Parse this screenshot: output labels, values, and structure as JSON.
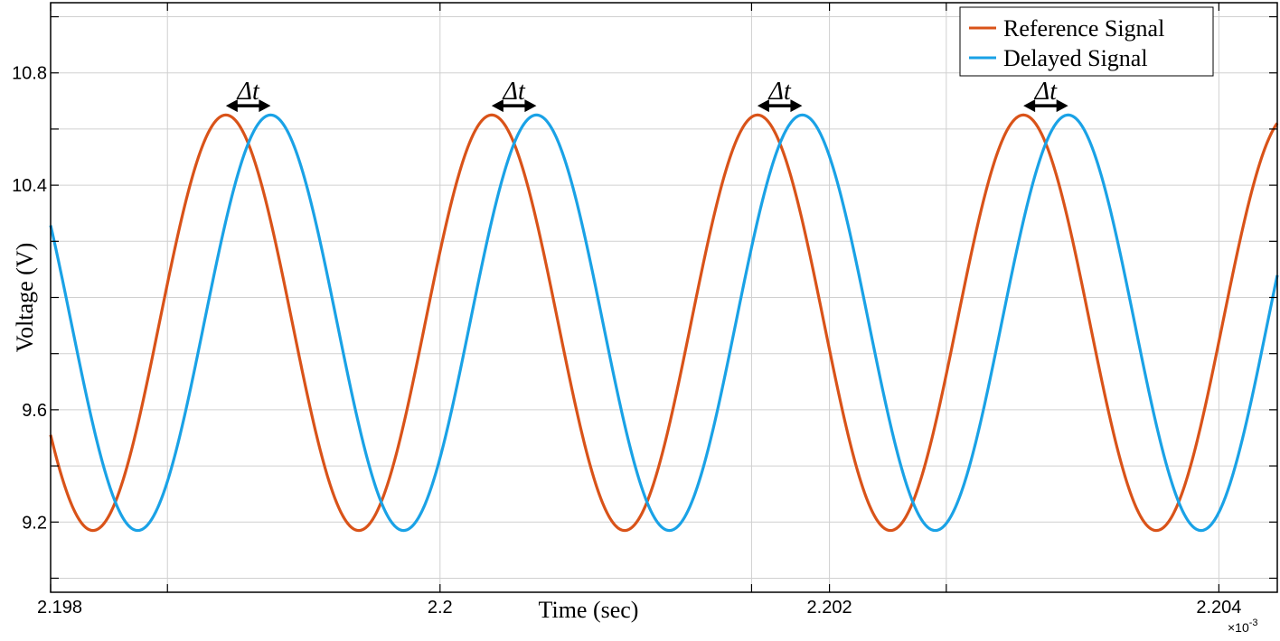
{
  "chart_data": {
    "type": "line",
    "title": "",
    "xlabel": "Time (sec)",
    "ylabel": "Voltage (V)",
    "x_exponent_label": "×10",
    "x_exponent_power": "-3",
    "xlim": [
      2.198,
      2.2043
    ],
    "ylim": [
      8.95,
      11.05
    ],
    "x_ticks": [
      2.198,
      2.2,
      2.202,
      2.204
    ],
    "x_tick_labels": [
      "2.198",
      "2.2",
      "2.202",
      "2.204"
    ],
    "x_grid": [
      2.198,
      2.1986,
      2.2,
      2.2016,
      2.202,
      2.2026,
      2.204
    ],
    "y_ticks": [
      9.2,
      9.6,
      10.0,
      10.4,
      10.8
    ],
    "y_tick_labels": [
      "9.2",
      "9.6",
      "",
      "10.4",
      "10.8"
    ],
    "y_grid": [
      9.0,
      9.2,
      9.4,
      9.6,
      9.8,
      10.0,
      10.2,
      10.4,
      10.6,
      10.8,
      11.0
    ],
    "grid": true,
    "legend_position": "top-right",
    "series": [
      {
        "name": "Reference Signal",
        "color": "#D95319",
        "period": 0.0013653,
        "peak_time": 2.1989,
        "amplitude": 0.74,
        "offset": 9.91
      },
      {
        "name": "Delayed Signal",
        "color": "#1AA2E6",
        "period": 0.0013653,
        "peak_time": 2.19913,
        "amplitude": 0.74,
        "offset": 9.91
      }
    ],
    "annotations": [
      {
        "label": "Δt",
        "x_start": 2.1989,
        "x_end": 2.19913,
        "y": 10.67
      },
      {
        "label": "Δt",
        "x_start": 2.200265,
        "x_end": 2.200495,
        "y": 10.67
      },
      {
        "label": "Δt",
        "x_start": 2.20163,
        "x_end": 2.20186,
        "y": 10.67
      },
      {
        "label": "Δt",
        "x_start": 2.202996,
        "x_end": 2.203226,
        "y": 10.67
      }
    ]
  }
}
